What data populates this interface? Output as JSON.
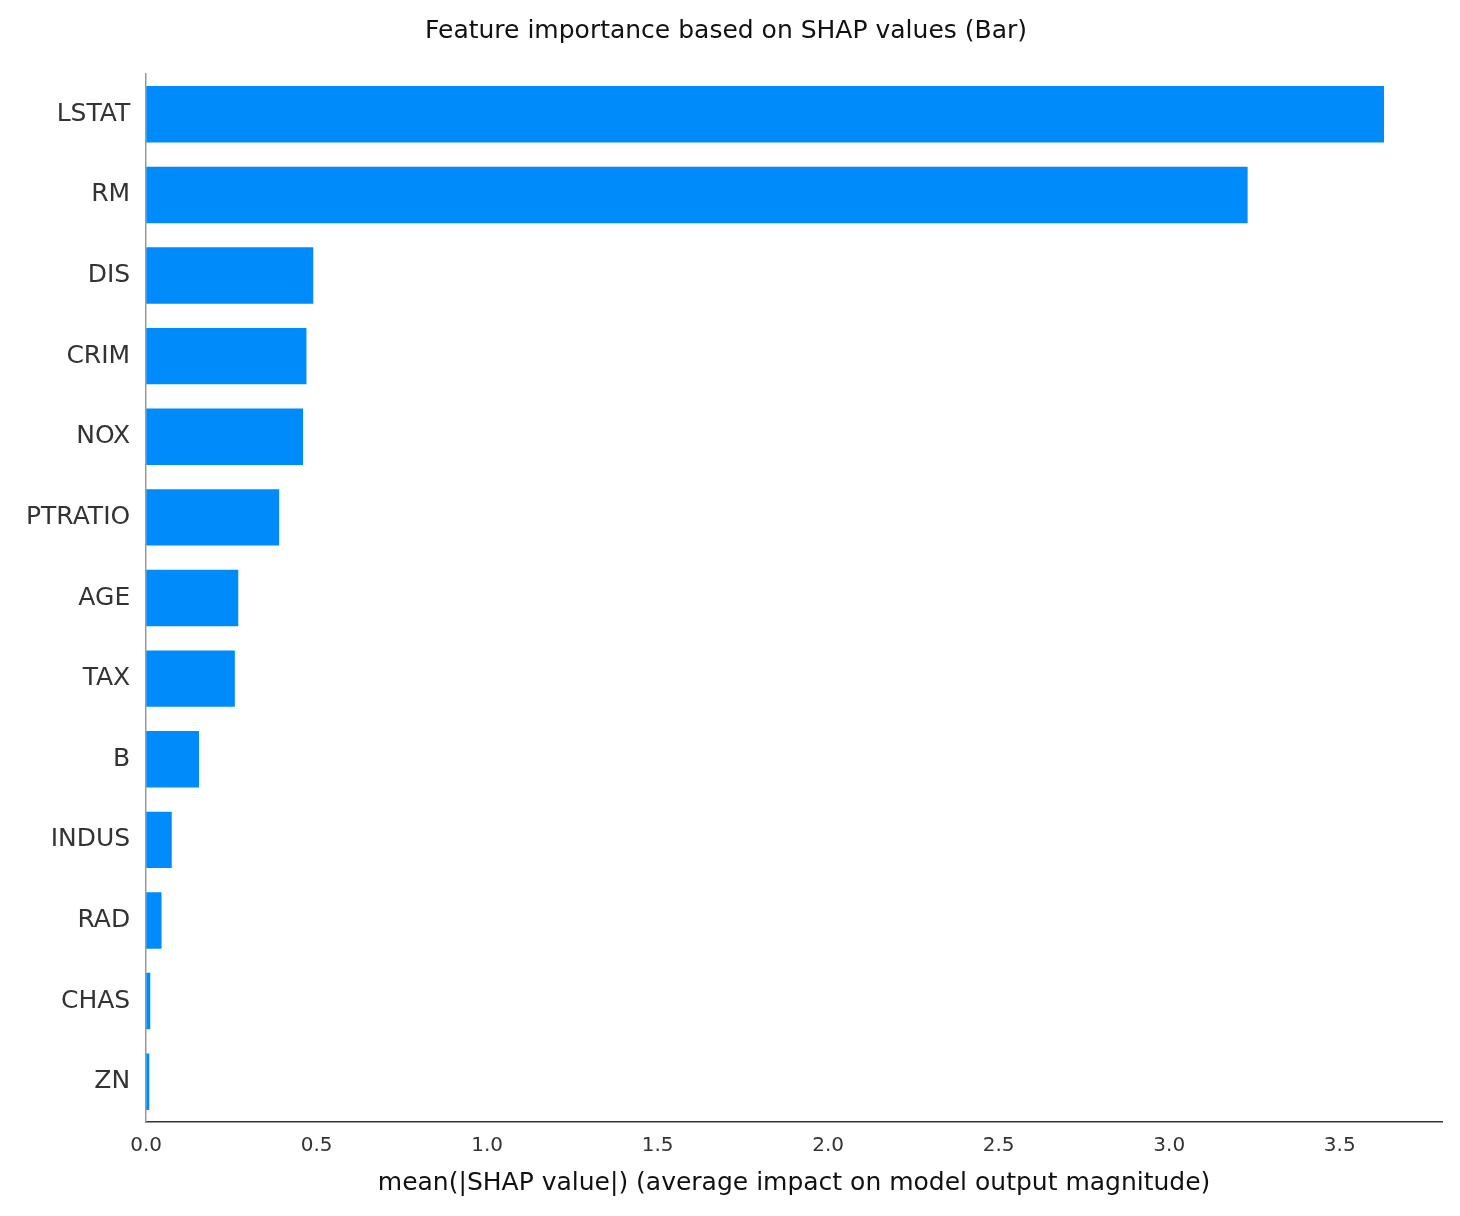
{
  "chart_data": {
    "type": "bar",
    "orientation": "horizontal",
    "title": "Feature importance based on SHAP values (Bar)",
    "x_label": "mean(|SHAP value|) (average impact on model output magnitude)",
    "categories": [
      "LSTAT",
      "RM",
      "DIS",
      "CRIM",
      "NOX",
      "PTRATIO",
      "AGE",
      "TAX",
      "B",
      "INDUS",
      "RAD",
      "CHAS",
      "ZN"
    ],
    "values": [
      3.63,
      3.23,
      0.49,
      0.47,
      0.46,
      0.39,
      0.27,
      0.26,
      0.155,
      0.075,
      0.045,
      0.012,
      0.009
    ],
    "color": "#008bfb",
    "xlim": [
      0,
      3.8
    ],
    "xticks": [
      {
        "value": 0,
        "label": "0.0"
      },
      0.5,
      {
        "value": 1,
        "label": "1.0"
      },
      1.5,
      {
        "value": 2,
        "label": "2.0"
      },
      2.5,
      {
        "value": 3,
        "label": "3.0"
      },
      3.5
    ],
    "grid": false
  }
}
